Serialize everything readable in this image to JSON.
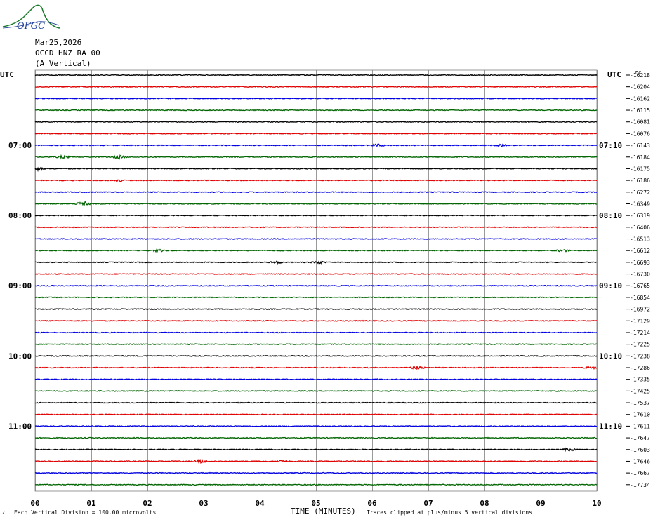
{
  "logo": {
    "text": "OFGC",
    "colors": [
      "#1b7a2a",
      "#1f3f9a"
    ]
  },
  "header": {
    "date": "Mar25,2026",
    "station": "OCCD HNZ RA 00",
    "component": "(A Vertical)"
  },
  "utc_label_left": "UTC",
  "utc_label_right": "UTC",
  "dc_label": "DC",
  "footer": {
    "scale_note": "Each Vertical Division =  100.00 microvolts",
    "xlabel": "TIME (MINUTES)",
    "clip_note": "Traces clipped at plus/minus 5 vertical divisions"
  },
  "chart_data": {
    "type": "line",
    "title": "",
    "xlabel": "TIME (MINUTES)",
    "ylabel": "",
    "xlim": [
      0,
      10
    ],
    "x_ticks": [
      "00",
      "01",
      "02",
      "03",
      "04",
      "05",
      "06",
      "07",
      "08",
      "09",
      "10"
    ],
    "grid": true,
    "trace_colors": [
      "#000000",
      "#e00000",
      "#0000e0",
      "#006400"
    ],
    "left_time_labels": [
      {
        "trace": 6,
        "text": "07:00"
      },
      {
        "trace": 12,
        "text": "08:00"
      },
      {
        "trace": 18,
        "text": "09:00"
      },
      {
        "trace": 24,
        "text": "10:00"
      },
      {
        "trace": 30,
        "text": "11:00"
      }
    ],
    "right_time_labels": [
      {
        "trace": 6,
        "text": "07:10"
      },
      {
        "trace": 12,
        "text": "08:10"
      },
      {
        "trace": 18,
        "text": "09:10"
      },
      {
        "trace": 24,
        "text": "10:10"
      },
      {
        "trace": 30,
        "text": "11:10"
      }
    ],
    "dc_offsets": [
      "-16218",
      "-16204",
      "-16162",
      "-16115",
      "-16081",
      "-16076",
      "-16143",
      "-16184",
      "-16175",
      "-16186",
      "-16272",
      "-16349",
      "-16319",
      "-16406",
      "-16513",
      "-16612",
      "-16693",
      "-16730",
      "-16765",
      "-16854",
      "-16972",
      "-17129",
      "-17214",
      "-17225",
      "-17238",
      "-17286",
      "-17335",
      "-17425",
      "-17537",
      "-17610",
      "-17611",
      "-17647",
      "-17603",
      "-17646",
      "-17667",
      "-17734"
    ],
    "events": [
      {
        "trace": 6,
        "minute": 6.1,
        "amp": 1.6
      },
      {
        "trace": 6,
        "minute": 8.3,
        "amp": 1.3
      },
      {
        "trace": 7,
        "minute": 0.5,
        "amp": 1.8
      },
      {
        "trace": 7,
        "minute": 1.5,
        "amp": 2.2
      },
      {
        "trace": 8,
        "minute": 0.05,
        "amp": 2.0
      },
      {
        "trace": 9,
        "minute": 1.5,
        "amp": 1.2
      },
      {
        "trace": 11,
        "minute": 0.85,
        "amp": 3.4
      },
      {
        "trace": 15,
        "minute": 2.2,
        "amp": 1.6
      },
      {
        "trace": 15,
        "minute": 9.4,
        "amp": 1.6
      },
      {
        "trace": 16,
        "minute": 4.3,
        "amp": 1.6
      },
      {
        "trace": 16,
        "minute": 5.05,
        "amp": 2.0
      },
      {
        "trace": 25,
        "minute": 6.8,
        "amp": 2.6
      },
      {
        "trace": 25,
        "minute": 9.9,
        "amp": 1.6
      },
      {
        "trace": 32,
        "minute": 9.5,
        "amp": 2.0
      },
      {
        "trace": 33,
        "minute": 2.95,
        "amp": 2.0
      },
      {
        "trace": 33,
        "minute": 4.4,
        "amp": 1.6
      }
    ]
  }
}
